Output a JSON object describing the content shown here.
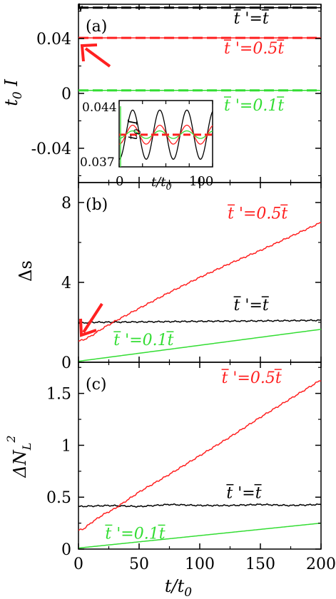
{
  "colors": {
    "black": "#000000",
    "red": "#ff2020",
    "green": "#33dd33"
  },
  "chart_data": [
    {
      "type": "line",
      "panel": "(a)",
      "xlim": [
        0,
        200
      ],
      "ylim": [
        -0.065,
        0.065
      ],
      "xticks": [
        0,
        50,
        100,
        150,
        200
      ],
      "yticks": [
        -0.04,
        0,
        0.04
      ],
      "ytick_labels": [
        "-0.04",
        "0",
        "0.04"
      ],
      "xtick_labels": [],
      "xlabel": "",
      "ylabel_main": "t",
      "ylabel_sub": "0",
      "ylabel_tail": " I",
      "series": [
        {
          "name": "t̄'=t̄",
          "color": "black",
          "x": [
            0,
            200
          ],
          "y": [
            0.0625,
            0.0625
          ],
          "dashed_overlay": true
        },
        {
          "name": "t̄'=0.5t̄",
          "color": "red",
          "x": [
            0,
            200
          ],
          "y": [
            0.0405,
            0.0405
          ],
          "dashed_overlay": true
        },
        {
          "name": "t̄'=0.1t̄",
          "color": "green",
          "x": [
            0,
            200
          ],
          "y": [
            0.0022,
            0.0022
          ],
          "dashed_overlay": true
        }
      ],
      "annotations": [
        {
          "id": "a-black",
          "base": "t",
          "prime": " '",
          "eq": "=",
          "base2": "t",
          "coef": "",
          "color": "black",
          "x": 128,
          "y": 0.051
        },
        {
          "id": "a-red",
          "base": "t",
          "prime": " '",
          "eq": "=0.5",
          "base2": "t",
          "coef": "0.5",
          "color": "red",
          "x": 120,
          "y": 0.029
        },
        {
          "id": "a-green",
          "base": "t",
          "prime": " '",
          "eq": "=0.1",
          "base2": "t",
          "coef": "0.1",
          "color": "green",
          "x": 120,
          "y": -0.0125
        }
      ]
    },
    {
      "type": "line",
      "panel": "inset",
      "xlim": [
        0,
        100
      ],
      "ylim": [
        0.037,
        0.044
      ],
      "xticks": [
        0,
        100
      ],
      "xtick_labels": [
        "0",
        "100"
      ],
      "yticks": [
        0.037,
        0.044
      ],
      "ytick_labels": [
        "0.037",
        "0.044"
      ],
      "xlabel_main": "t/t",
      "xlabel_sub": "0",
      "ylabel_main": "t",
      "ylabel_sub": "0",
      "ylabel_tail": " I",
      "series": [
        {
          "name": "t̄'=t̄",
          "color": "black",
          "amplitude": 0.0026,
          "period": 29,
          "center": 0.0404
        },
        {
          "name": "t̄'=0.5t̄ (solid)",
          "color": "red",
          "amplitude": 0.001,
          "period": 29,
          "center": 0.0404
        },
        {
          "name": "t̄'=0.1t̄",
          "color": "green",
          "amplitude": 0.0004,
          "period": 29,
          "center": 0.0404
        },
        {
          "name": "t̄'=0.5t̄ (dashed)",
          "color": "red",
          "amplitude": 0,
          "period": 29,
          "center": 0.0404
        }
      ]
    },
    {
      "type": "line",
      "panel": "(b)",
      "xlim": [
        0,
        200
      ],
      "ylim": [
        0,
        9
      ],
      "xticks": [
        0,
        50,
        100,
        150,
        200
      ],
      "xtick_labels": [],
      "yticks": [
        0,
        4,
        8
      ],
      "ytick_labels": [
        "0",
        "4",
        "8"
      ],
      "ylabel": "Δs",
      "series": [
        {
          "name": "t̄'=t̄",
          "color": "black",
          "x": [
            0,
            10,
            50,
            100,
            150,
            200
          ],
          "y": [
            1.95,
            2.0,
            2.02,
            2.05,
            2.07,
            2.1
          ]
        },
        {
          "name": "t̄'=0.5t̄",
          "color": "red",
          "x": [
            0,
            5,
            10,
            20,
            30,
            50,
            75,
            100,
            125,
            150,
            175,
            200
          ],
          "y": [
            1.05,
            1.15,
            1.3,
            1.7,
            2.05,
            2.7,
            3.5,
            4.25,
            4.95,
            5.6,
            6.3,
            7.0
          ]
        },
        {
          "name": "t̄'=0.1t̄",
          "color": "green",
          "x": [
            0,
            50,
            100,
            150,
            200
          ],
          "y": [
            0.05,
            0.45,
            0.85,
            1.25,
            1.65
          ]
        }
      ],
      "annotations": [
        {
          "id": "b-red",
          "base": "t",
          "prime": " '",
          "eq": "=0.5",
          "base2": "t",
          "color": "red",
          "x": 123,
          "y": 7.2
        },
        {
          "id": "b-black",
          "base": "t",
          "prime": " '",
          "eq": "=",
          "base2": "t",
          "color": "black",
          "x": 128,
          "y": 2.6
        },
        {
          "id": "b-green",
          "base": "t",
          "prime": " '",
          "eq": "=0.1",
          "base2": "t",
          "color": "green",
          "x": 29,
          "y": 0.85
        }
      ]
    },
    {
      "type": "line",
      "panel": "(c)",
      "xlim": [
        0,
        200
      ],
      "ylim": [
        0,
        1.8
      ],
      "xticks": [
        0,
        50,
        100,
        150,
        200
      ],
      "xtick_labels": [
        "0",
        "50",
        "100",
        "150",
        "200"
      ],
      "yticks": [
        0,
        0.5,
        1,
        1.5
      ],
      "ytick_labels": [
        "0",
        "0.5",
        "1",
        "1.5"
      ],
      "xlabel_main": "t/t",
      "xlabel_sub": "0",
      "ylabel_main": "ΔN",
      "ylabel_sub": "L",
      "ylabel_sup": "2",
      "series": [
        {
          "name": "t̄'=t̄",
          "color": "black",
          "x": [
            0,
            25,
            50,
            75,
            100,
            125,
            150,
            175,
            200
          ],
          "y": [
            0.41,
            0.42,
            0.41,
            0.43,
            0.42,
            0.42,
            0.43,
            0.42,
            0.43
          ]
        },
        {
          "name": "t̄'=0.5t̄",
          "color": "red",
          "x": [
            0,
            5,
            10,
            20,
            30,
            50,
            75,
            100,
            125,
            150,
            175,
            200
          ],
          "y": [
            0.18,
            0.2,
            0.25,
            0.33,
            0.39,
            0.55,
            0.72,
            0.9,
            1.08,
            1.27,
            1.45,
            1.63
          ]
        },
        {
          "name": "t̄'=0.1t̄",
          "color": "green",
          "x": [
            0,
            50,
            100,
            150,
            200
          ],
          "y": [
            0.01,
            0.07,
            0.13,
            0.19,
            0.25
          ]
        }
      ],
      "annotations": [
        {
          "id": "c-red",
          "base": "t",
          "prime": " '",
          "eq": "=0.5",
          "base2": "t",
          "color": "red",
          "x": 118,
          "y": 1.6
        },
        {
          "id": "c-black",
          "base": "t",
          "prime": " '",
          "eq": "=",
          "base2": "t",
          "color": "black",
          "x": 122,
          "y": 0.49
        },
        {
          "id": "c-green",
          "base": "t",
          "prime": " '",
          "eq": "=0.1",
          "base2": "t",
          "color": "green",
          "x": 22,
          "y": 0.1
        }
      ]
    }
  ]
}
